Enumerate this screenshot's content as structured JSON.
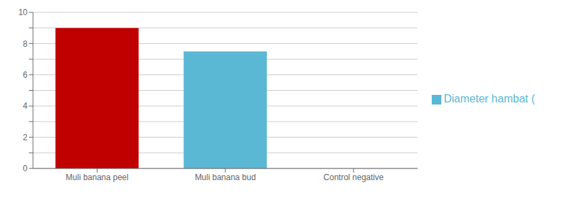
{
  "chart_data": {
    "type": "bar",
    "categories": [
      "Muli banana peel",
      "Muli banana bud",
      "Control negative"
    ],
    "series": [
      {
        "name": "Diameter hambat (",
        "color": "#5BB8D4",
        "colors": [
          "#C00000",
          "#5BB8D4",
          "#CCCCCC"
        ],
        "values": [
          9.0,
          7.5,
          0.0
        ]
      }
    ],
    "ylim": [
      0,
      10
    ],
    "yticks": [
      0,
      {
        "value": 1,
        "label": null
      },
      2,
      {
        "value": 3,
        "label": null
      },
      4,
      {
        "value": 5,
        "label": null
      },
      6,
      {
        "value": 7,
        "label": null
      },
      8,
      {
        "value": 9,
        "label": null
      },
      10
    ],
    "grid": true,
    "legend": "right"
  }
}
